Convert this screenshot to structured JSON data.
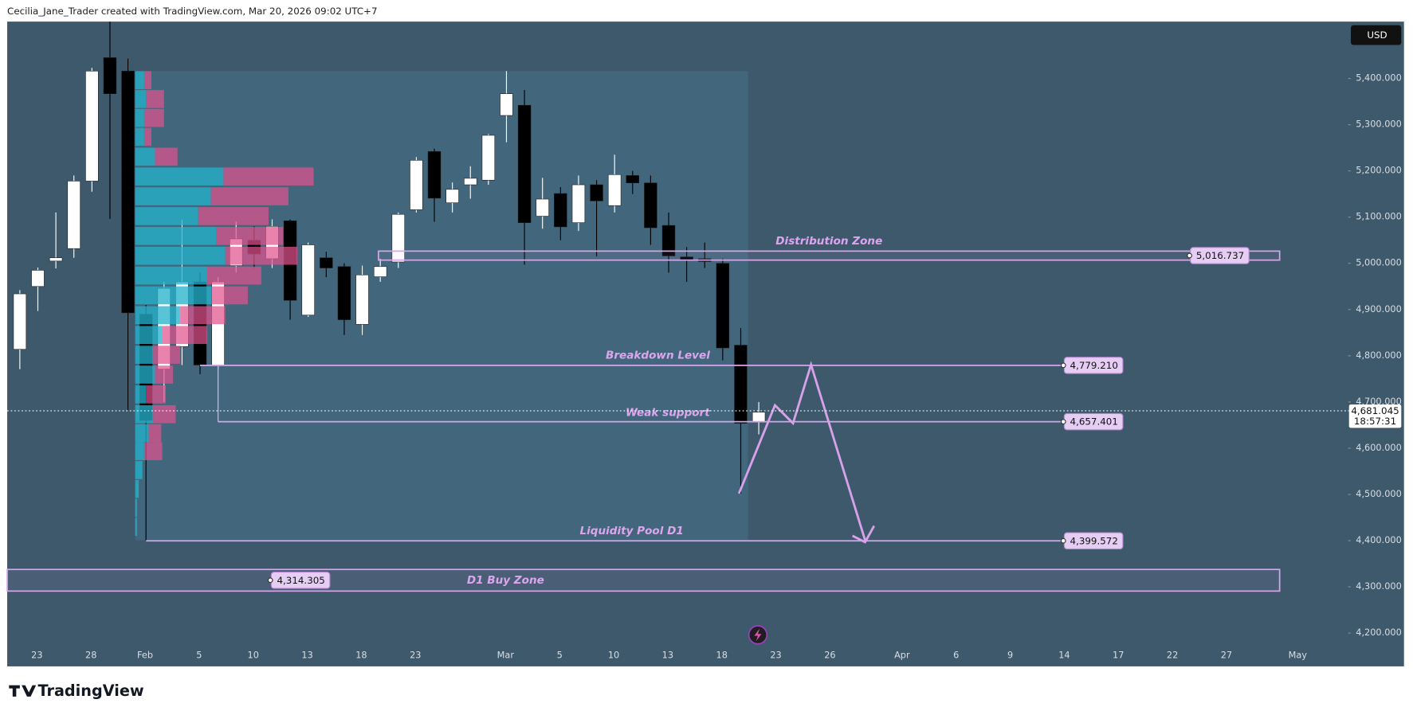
{
  "header": "Cecilia_Jane_Trader created with TradingView.com, Mar 20, 2026 09:02 UTC+7",
  "brand": "TradingView",
  "currency": "USD",
  "chart_data": {
    "type": "candlestick",
    "categories": [
      null,
      "23",
      null,
      null,
      "28",
      null,
      null,
      "Feb",
      null,
      null,
      "5",
      null,
      null,
      "10",
      null,
      null,
      "13",
      null,
      null,
      "18",
      null,
      null,
      "23",
      null,
      null,
      null,
      null,
      "Mar",
      null,
      null,
      "5",
      null,
      null,
      "10",
      null,
      null,
      "13",
      null,
      null,
      "18",
      null,
      null
    ],
    "future_ticks": [
      "23",
      "26",
      "Apr",
      "6",
      "9",
      "14",
      "17",
      "22",
      "27",
      "May"
    ],
    "open": [
      4814,
      4950,
      5005,
      5032,
      5178,
      5445,
      5416,
      4890,
      4771,
      4820,
      4960,
      4780,
      4995,
      5050,
      5010,
      5092,
      4888,
      5012,
      4993,
      4868,
      4971,
      5003,
      5116,
      5242,
      5131,
      5170,
      5180,
      5320,
      5342,
      5102,
      5151,
      5088,
      5170,
      5125,
      5190,
      5174,
      5082,
      5014,
      5010,
      5000,
      4823,
      4658
    ],
    "high": [
      4942,
      4991,
      5110,
      5190,
      5423,
      5523,
      5443,
      4910,
      4960,
      5095,
      4980,
      4970,
      5090,
      5080,
      5095,
      5095,
      5045,
      5025,
      5000,
      4995,
      5010,
      5110,
      5230,
      5248,
      5175,
      5210,
      5280,
      5416,
      5375,
      5185,
      5165,
      5190,
      5180,
      5235,
      5200,
      5190,
      5110,
      5035,
      5045,
      5010,
      4860,
      4700
    ],
    "low": [
      4771,
      4897,
      4989,
      5012,
      5155,
      5096,
      4683,
      4400,
      4700,
      4780,
      4760,
      4770,
      4980,
      4990,
      4990,
      4878,
      4884,
      4970,
      4845,
      4845,
      4960,
      4990,
      5110,
      5090,
      5110,
      5140,
      5170,
      5262,
      4997,
      5075,
      5050,
      5070,
      5015,
      5110,
      5150,
      5040,
      4980,
      4960,
      4990,
      4790,
      4502,
      4630
    ],
    "close": [
      4934,
      4985,
      5012,
      5178,
      5416,
      5367,
      4893,
      4660,
      4946,
      4960,
      4780,
      4960,
      5053,
      5020,
      5080,
      4920,
      5040,
      4990,
      4878,
      4975,
      4993,
      5106,
      5223,
      5141,
      5160,
      5184,
      5277,
      5367,
      5088,
      5139,
      5079,
      5170,
      5135,
      5192,
      5174,
      5077,
      5016,
      5006,
      5004,
      4817,
      4654,
      4678
    ],
    "up_color": "#ffffff",
    "down_color": "#000000",
    "ylim": [
      4128,
      5523
    ],
    "yticks": [
      {
        "value": 4200,
        "label": "4,200.000"
      },
      {
        "value": 4300,
        "label": "4,300.000"
      },
      {
        "value": 4400,
        "label": "4,400.000"
      },
      {
        "value": 4500,
        "label": "4,500.000"
      },
      {
        "value": 4600,
        "label": "4,600.000"
      },
      {
        "value": 4700,
        "label": "4,700.000"
      },
      {
        "value": 4800,
        "label": "4,800.000"
      },
      {
        "value": 4900,
        "label": "4,900.000"
      },
      {
        "value": 5000,
        "label": "5,000.000"
      },
      {
        "value": 5100,
        "label": "5,100.000"
      },
      {
        "value": 5200,
        "label": "5,200.000"
      },
      {
        "value": 5300,
        "label": "5,300.000"
      },
      {
        "value": 5400,
        "label": "5,400.000"
      }
    ],
    "current_price": 4681.045,
    "current_price_label": "4,681.045",
    "countdown": "18:57:31",
    "levels": [
      {
        "name": "Distribution Zone",
        "value": 5016.737,
        "label": "5,016.737"
      },
      {
        "name": "Breakdown Level",
        "value": 4779.21,
        "label": "4,779.210"
      },
      {
        "name": "Weak support",
        "value": 4657.401,
        "label": "4,657.401"
      },
      {
        "name": "Liquidity Pool D1",
        "value": 4399.572,
        "label": "4,399.572"
      },
      {
        "name": "D1 Buy Zone",
        "value": 4314.305,
        "label": "4,314.305"
      }
    ]
  }
}
